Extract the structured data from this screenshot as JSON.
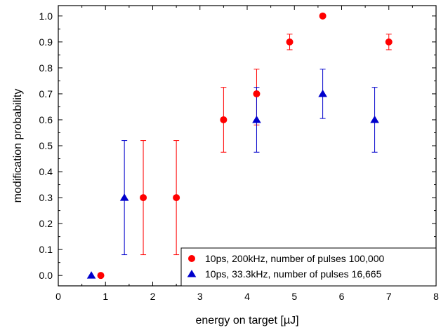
{
  "chart_data": {
    "type": "scatter",
    "xlabel": "energy on target [µJ]",
    "ylabel": "modification probability",
    "xlim": [
      0,
      8
    ],
    "ylim": [
      -0.04,
      1.04
    ],
    "xticks": [
      "0",
      "1",
      "2",
      "3",
      "4",
      "5",
      "6",
      "7",
      "8"
    ],
    "yticks": [
      "0.0",
      "0.1",
      "0.2",
      "0.3",
      "0.4",
      "0.5",
      "0.6",
      "0.7",
      "0.8",
      "0.9",
      "1.0"
    ],
    "grid": false,
    "legend_position": "bottom-right",
    "series": [
      {
        "name": "10ps, 200kHz, number of pulses 100,000",
        "marker": "circle",
        "color": "#ff0000",
        "x": [
          0.9,
          1.8,
          2.5,
          3.5,
          4.2,
          4.9,
          5.6,
          7.0
        ],
        "y": [
          0.0,
          0.3,
          0.3,
          0.6,
          0.7,
          0.9,
          1.0,
          0.9
        ],
        "err_low": [
          0,
          0.22,
          0.22,
          0.125,
          0.12,
          0.03,
          0,
          0.03
        ],
        "err_high": [
          0,
          0.22,
          0.22,
          0.125,
          0.095,
          0.03,
          0,
          0.03
        ]
      },
      {
        "name": "10ps, 33.3kHz, number of pulses 16,665",
        "marker": "triangle",
        "color": "#0000cc",
        "x": [
          0.7,
          1.4,
          4.2,
          5.6,
          6.7
        ],
        "y": [
          0.0,
          0.3,
          0.6,
          0.7,
          0.6
        ],
        "err_low": [
          0,
          0.22,
          0.125,
          0.095,
          0.125
        ],
        "err_high": [
          0,
          0.22,
          0.125,
          0.095,
          0.125
        ]
      }
    ]
  }
}
